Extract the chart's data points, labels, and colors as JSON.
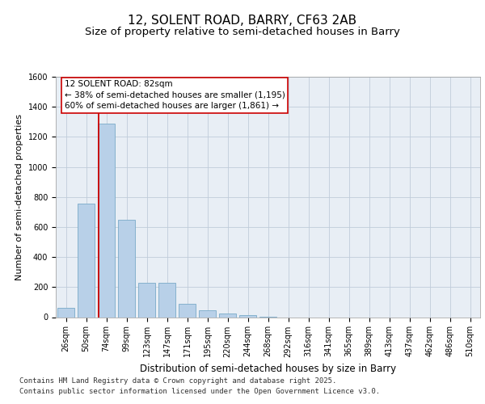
{
  "title": "12, SOLENT ROAD, BARRY, CF63 2AB",
  "subtitle": "Size of property relative to semi-detached houses in Barry",
  "xlabel": "Distribution of semi-detached houses by size in Barry",
  "ylabel": "Number of semi-detached properties",
  "categories": [
    "26sqm",
    "50sqm",
    "74sqm",
    "99sqm",
    "123sqm",
    "147sqm",
    "171sqm",
    "195sqm",
    "220sqm",
    "244sqm",
    "268sqm",
    "292sqm",
    "316sqm",
    "341sqm",
    "365sqm",
    "389sqm",
    "413sqm",
    "437sqm",
    "462sqm",
    "486sqm",
    "510sqm"
  ],
  "values": [
    60,
    755,
    1290,
    650,
    230,
    230,
    90,
    45,
    25,
    15,
    5,
    0,
    0,
    0,
    0,
    0,
    0,
    0,
    0,
    0,
    0
  ],
  "bar_color": "#b8d0e8",
  "bar_edge_color": "#7aaac8",
  "vline_index": 2,
  "vline_color": "#cc0000",
  "annotation_text": "12 SOLENT ROAD: 82sqm\n← 38% of semi-detached houses are smaller (1,195)\n60% of semi-detached houses are larger (1,861) →",
  "annotation_box_facecolor": "#ffffff",
  "annotation_box_edgecolor": "#cc0000",
  "ylim": [
    0,
    1600
  ],
  "yticks": [
    0,
    200,
    400,
    600,
    800,
    1000,
    1200,
    1400,
    1600
  ],
  "plot_bg_color": "#e8eef5",
  "footer_line1": "Contains HM Land Registry data © Crown copyright and database right 2025.",
  "footer_line2": "Contains public sector information licensed under the Open Government Licence v3.0.",
  "title_fontsize": 11,
  "subtitle_fontsize": 9.5,
  "tick_fontsize": 7,
  "ylabel_fontsize": 8,
  "xlabel_fontsize": 8.5,
  "annotation_fontsize": 7.5,
  "footer_fontsize": 6.5
}
